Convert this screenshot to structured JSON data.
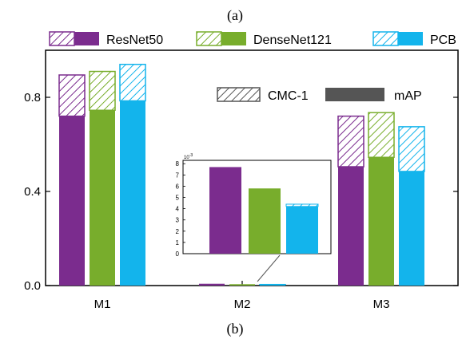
{
  "header_label": "(a)",
  "footer_label": "(b)",
  "colors": {
    "ResNet50": "#7b2c8e",
    "DenseNet121": "#78ad2c",
    "PCB": "#13b4ec",
    "axis": "#000000",
    "legend_box": "#555555"
  },
  "chart_data": {
    "type": "bar",
    "categories": [
      "M1",
      "M2",
      "M3"
    ],
    "series": [
      {
        "name": "ResNet50",
        "mAP": [
          0.72,
          0.0077,
          0.505
        ],
        "cmc1": [
          0.895,
          0.0077,
          0.72
        ]
      },
      {
        "name": "DenseNet121",
        "mAP": [
          0.745,
          0.0058,
          0.545
        ],
        "cmc1": [
          0.91,
          0.0058,
          0.735
        ]
      },
      {
        "name": "PCB",
        "mAP": [
          0.785,
          0.0042,
          0.485
        ],
        "cmc1": [
          0.94,
          0.0044,
          0.675
        ]
      }
    ],
    "metric_legend": [
      "CMC-1",
      "mAP"
    ],
    "yticks": [
      0.0,
      0.4,
      0.8
    ],
    "ylim": [
      0,
      1.0
    ],
    "inset": {
      "exponent_label": "10",
      "exponent_power": "-3",
      "yticks": [
        0,
        1,
        2,
        3,
        4,
        5,
        6,
        7,
        8
      ],
      "ylim": [
        0,
        8.3
      ]
    }
  }
}
